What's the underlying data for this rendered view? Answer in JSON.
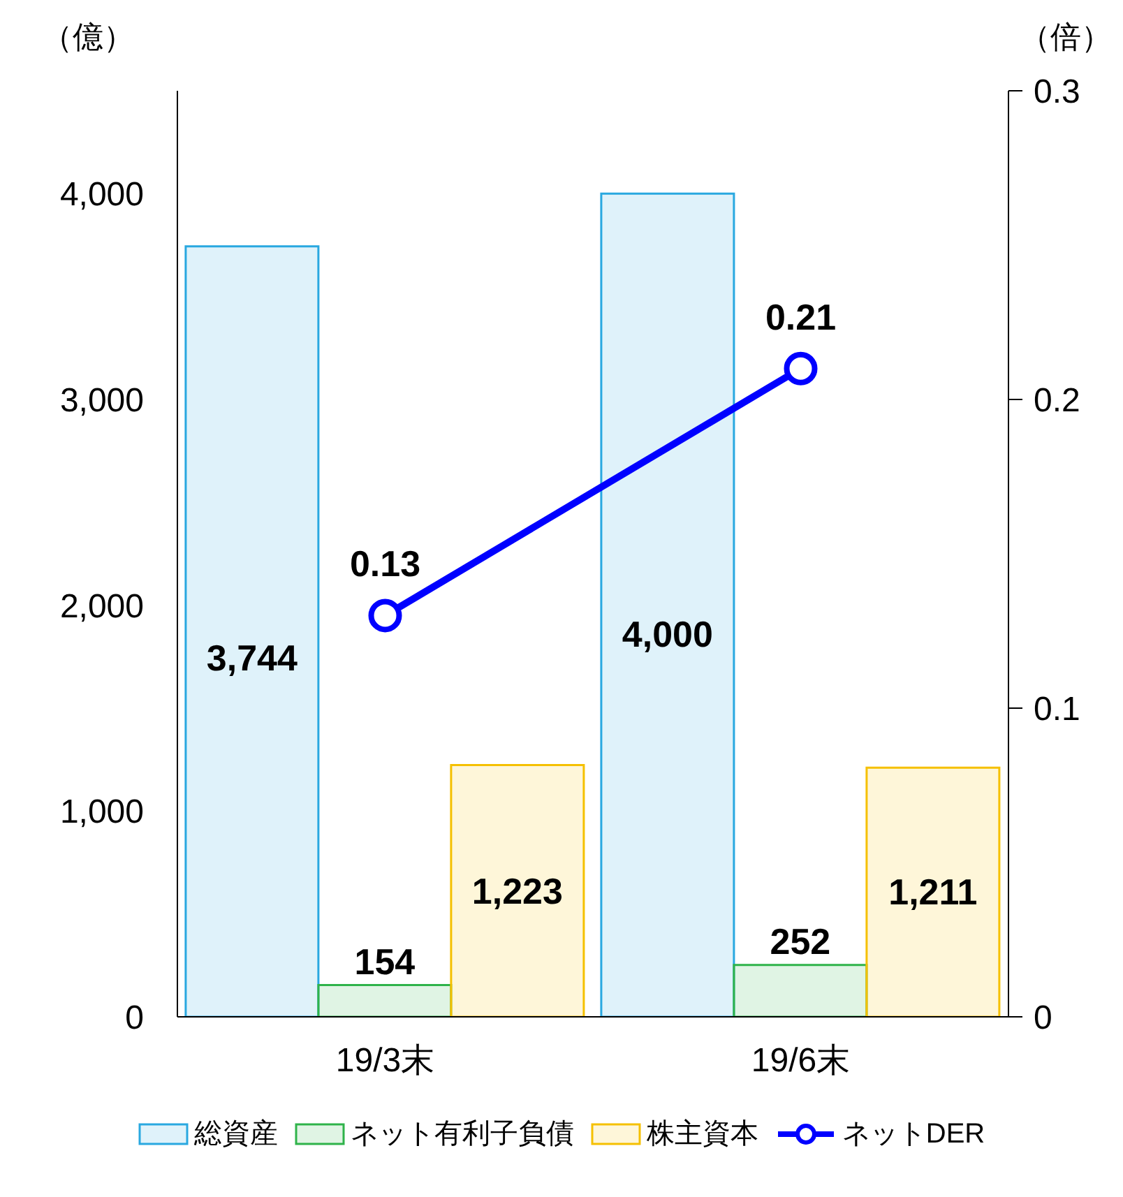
{
  "chart_data": {
    "type": "bar",
    "ylabel": "（億）",
    "y2label": "（倍）",
    "categories": [
      "19/3末",
      "19/6末"
    ],
    "series": [
      {
        "name": "総資産",
        "color": "#29a8e0",
        "values": [
          3744,
          4000
        ],
        "value_labels": [
          "3,744",
          "4,000"
        ]
      },
      {
        "name": "ネット有利子負債",
        "color": "#2fb34a",
        "values": [
          154,
          252
        ],
        "value_labels": [
          "154",
          "252"
        ]
      },
      {
        "name": "株主資本",
        "color": "#f5c000",
        "values": [
          1223,
          1211
        ],
        "value_labels": [
          "1,223",
          "1,211"
        ]
      },
      {
        "name": "ネットDER",
        "type": "line",
        "axis": "y2",
        "color": "#0000ff",
        "marker": "circle",
        "values": [
          0.13,
          0.21
        ],
        "value_labels": [
          "0.13",
          "0.21"
        ]
      }
    ],
    "ylim": [
      0,
      4500
    ],
    "yticks": [
      0,
      {
        "value": 1000,
        "label": "1,000"
      },
      {
        "value": 2000,
        "label": "2,000"
      },
      {
        "value": 3000,
        "label": "3,000"
      },
      {
        "value": 4000,
        "label": "4,000"
      }
    ],
    "y2lim": [
      0,
      0.3
    ],
    "y2ticks": [
      0,
      0.1,
      0.2,
      0.3
    ],
    "legend": "bottom",
    "grid": false
  }
}
